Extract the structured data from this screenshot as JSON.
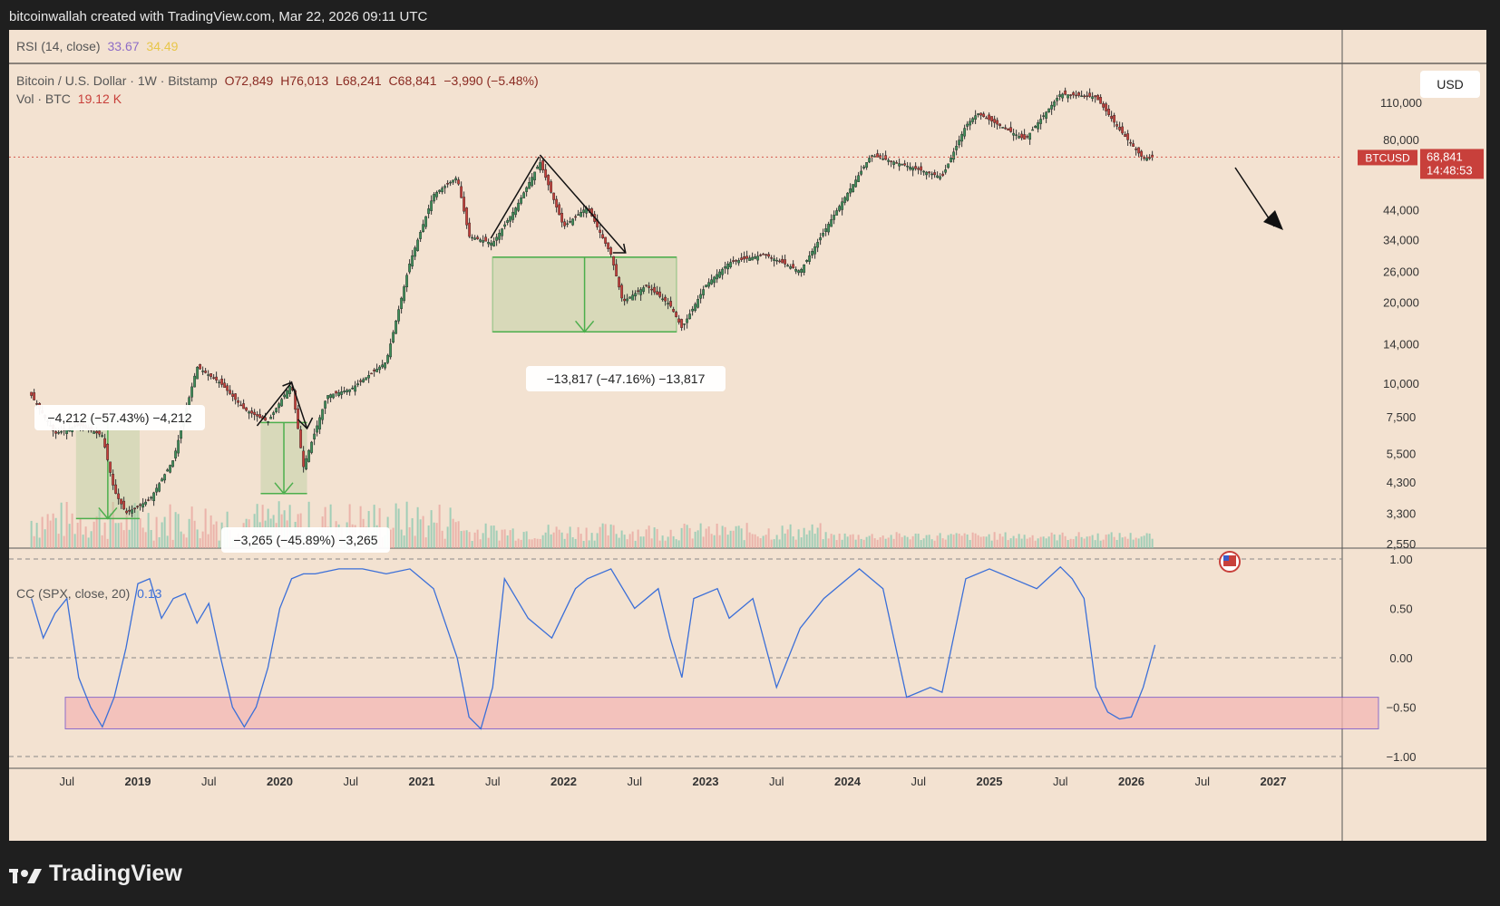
{
  "header": {
    "attribution": "bitcoinwallah created with TradingView.com, Mar 22, 2026 09:11 UTC"
  },
  "rsi": {
    "label": "RSI (14, close)",
    "value1": "33.67",
    "value2": "34.49",
    "value1_color": "#8e6cc6",
    "value2_color": "#e8c64a"
  },
  "main": {
    "symbol": "Bitcoin / U.S. Dollar · 1W · Bitstamp",
    "ohlc": {
      "o": "O72,849",
      "h": "H76,013",
      "l": "L68,241",
      "c": "C68,841",
      "chg": "−3,990 (−5.48%)"
    },
    "vol_label": "Vol · BTC",
    "vol_value": "19.12 K",
    "currency": "USD",
    "ticker": "BTCUSD",
    "last_price": "68,841",
    "countdown": "14:48:53"
  },
  "cc": {
    "label": "CC (SPX, close, 20)",
    "value": "0.13",
    "value_color": "#3b6fd8"
  },
  "branding": {
    "name": "TradingView"
  },
  "colors": {
    "up": "#3f8f5a",
    "down": "#c8403b",
    "corr_line": "#3b6fd8",
    "measure": "#4cae4c",
    "zone_fill": "#f4b8b6",
    "zone_stroke": "#6a45c8"
  },
  "chart_data": [
    {
      "type": "candlestick",
      "title": "Bitcoin / U.S. Dollar · 1W · Bitstamp",
      "y_scale": "log",
      "y_ticks": [
        "110,000",
        "80,000",
        "44,000",
        "34,000",
        "26,000",
        "20,000",
        "14,000",
        "10,000",
        "7,500",
        "5,500",
        "4,300",
        "3,300",
        "2,550"
      ],
      "x_ticks": [
        "Jul",
        "2019",
        "Jul",
        "2020",
        "Jul",
        "2021",
        "Jul",
        "2022",
        "Jul",
        "2023",
        "Jul",
        "2024",
        "Jul",
        "2025",
        "Jul",
        "2026",
        "Jul",
        "2027"
      ],
      "price_path": [
        [
          "2018-04",
          9000
        ],
        [
          "2018-06",
          6500
        ],
        [
          "2018-08",
          7000
        ],
        [
          "2018-10",
          6400
        ],
        [
          "2018-11",
          4000
        ],
        [
          "2018-12",
          3300
        ],
        [
          "2019-02",
          3700
        ],
        [
          "2019-04",
          5200
        ],
        [
          "2019-06",
          11500
        ],
        [
          "2019-08",
          10000
        ],
        [
          "2019-10",
          8000
        ],
        [
          "2019-12",
          7200
        ],
        [
          "2020-02",
          10000
        ],
        [
          "2020-03",
          4900
        ],
        [
          "2020-05",
          9000
        ],
        [
          "2020-07",
          9500
        ],
        [
          "2020-10",
          12000
        ],
        [
          "2020-12",
          28000
        ],
        [
          "2021-02",
          50000
        ],
        [
          "2021-04",
          58000
        ],
        [
          "2021-05",
          35000
        ],
        [
          "2021-07",
          33000
        ],
        [
          "2021-09",
          45000
        ],
        [
          "2021-11",
          66000
        ],
        [
          "2022-01",
          38000
        ],
        [
          "2022-03",
          45000
        ],
        [
          "2022-05",
          30000
        ],
        [
          "2022-06",
          20000
        ],
        [
          "2022-08",
          23000
        ],
        [
          "2022-10",
          19500
        ],
        [
          "2022-11",
          16000
        ],
        [
          "2023-01",
          23000
        ],
        [
          "2023-03",
          28000
        ],
        [
          "2023-06",
          30000
        ],
        [
          "2023-09",
          26000
        ],
        [
          "2023-12",
          43000
        ],
        [
          "2024-03",
          70000
        ],
        [
          "2024-06",
          64000
        ],
        [
          "2024-09",
          58000
        ],
        [
          "2024-11",
          90000
        ],
        [
          "2024-12",
          100000
        ],
        [
          "2025-04",
          80000
        ],
        [
          "2025-07",
          118000
        ],
        [
          "2025-10",
          115000
        ],
        [
          "2025-12",
          87000
        ],
        [
          "2026-02",
          68000
        ],
        [
          "2026-03",
          68841
        ]
      ],
      "annotations": [
        {
          "text": "−4,212 (−57.43%) −4,212",
          "from": 7350,
          "to": 3150
        },
        {
          "text": "−3,265 (−45.89%) −3,265",
          "from": 7150,
          "to": 3900
        },
        {
          "text": "−13,817 (−47.16%) −13,817",
          "from": 29300,
          "to": 15500
        }
      ]
    },
    {
      "type": "line",
      "title": "CC (SPX, close, 20)",
      "y_ticks": [
        "1.00",
        "0.50",
        "0.00",
        "−0.50",
        "−1.00"
      ],
      "ylim": [
        -1.0,
        1.0
      ],
      "x": [
        "2018-04",
        "2018-05",
        "2018-06",
        "2018-07",
        "2018-08",
        "2018-09",
        "2018-10",
        "2018-11",
        "2018-12",
        "2019-01",
        "2019-02",
        "2019-03",
        "2019-04",
        "2019-05",
        "2019-06",
        "2019-07",
        "2019-08",
        "2019-09",
        "2019-10",
        "2019-11",
        "2019-12",
        "2020-01",
        "2020-02",
        "2020-03",
        "2020-04",
        "2020-06",
        "2020-08",
        "2020-10",
        "2020-12",
        "2021-02",
        "2021-04",
        "2021-05",
        "2021-06",
        "2021-07",
        "2021-08",
        "2021-09",
        "2021-10",
        "2021-12",
        "2022-02",
        "2022-03",
        "2022-05",
        "2022-07",
        "2022-09",
        "2022-10",
        "2022-11",
        "2022-12",
        "2023-02",
        "2023-03",
        "2023-05",
        "2023-07",
        "2023-09",
        "2023-11",
        "2024-01",
        "2024-02",
        "2024-04",
        "2024-06",
        "2024-08",
        "2024-09",
        "2024-11",
        "2025-01",
        "2025-03",
        "2025-05",
        "2025-07",
        "2025-08",
        "2025-09",
        "2025-10",
        "2025-11",
        "2025-12",
        "2026-01",
        "2026-02",
        "2026-03"
      ],
      "values": [
        0.6,
        0.2,
        0.45,
        0.6,
        -0.2,
        -0.5,
        -0.7,
        -0.4,
        0.1,
        0.75,
        0.8,
        0.4,
        0.6,
        0.65,
        0.35,
        0.55,
        0.0,
        -0.5,
        -0.7,
        -0.5,
        -0.1,
        0.5,
        0.8,
        0.85,
        0.85,
        0.9,
        0.9,
        0.85,
        0.9,
        0.7,
        0.0,
        -0.6,
        -0.72,
        -0.3,
        0.8,
        0.6,
        0.4,
        0.2,
        0.7,
        0.8,
        0.9,
        0.5,
        0.7,
        0.2,
        -0.2,
        0.6,
        0.7,
        0.4,
        0.6,
        -0.3,
        0.3,
        0.6,
        0.8,
        0.9,
        0.7,
        -0.4,
        -0.3,
        -0.35,
        0.8,
        0.9,
        0.8,
        0.7,
        0.92,
        0.8,
        0.6,
        -0.3,
        -0.55,
        -0.62,
        -0.6,
        -0.3,
        0.13
      ],
      "zone": {
        "from": -0.4,
        "to": -0.72
      }
    }
  ]
}
